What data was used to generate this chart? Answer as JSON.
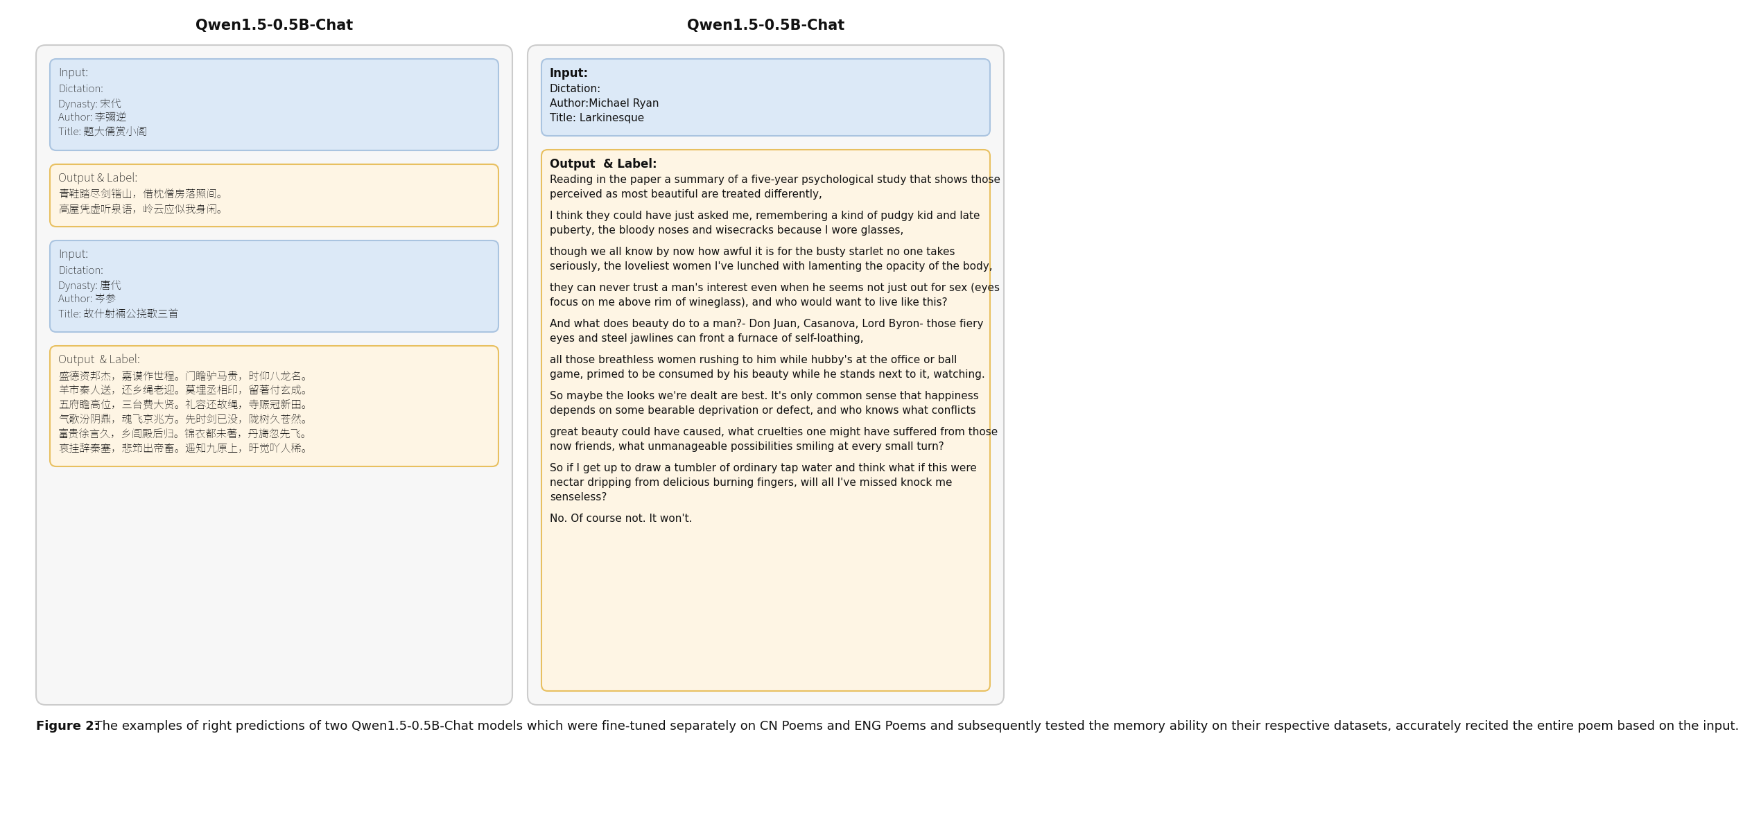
{
  "left_title": "Qwen1.5-0.5B-Chat",
  "right_title": "Qwen1.5-0.5B-Chat",
  "left_boxes": [
    {
      "type": "input",
      "label": "Input:",
      "text": "Dictation:\nDynasty: 宋代\nAuthor: 李彌逆\nTitle: 题大儒赏小阁",
      "bg_color": "#dce9f7",
      "border_color": "#aac4e0"
    },
    {
      "type": "output",
      "label": "Output & Label:",
      "text": "青鞋踏尽剑锴山，借枕僧房落照间。\n高屋凭虚听泉语，岭云应似我身闲。",
      "bg_color": "#fef5e4",
      "border_color": "#e8c060"
    },
    {
      "type": "input",
      "label": "Input:",
      "text": "Dictation:\nDynasty: 唐代\nAuthor: 岑参\nTitle: 故什射裲公挠歌三首",
      "bg_color": "#dce9f7",
      "border_color": "#aac4e0"
    },
    {
      "type": "output",
      "label": "Output  & Label:",
      "text": "盛德资邦杰，嘉谟作世程。门瞻驴马贵，时仰八龙名。\n羊市秦人送，还乡绳老迎。莫埋丞相印，留著付玄成。\n五府瞻高位，三台费大贤。礼容还故绳，寺赈冠新田。\n气歌汾阴鼎，魂飞京兆方。先时剑已没，陇树久苍然。\n富贵徐言久，乡闾殿后归。锦衣都未著，丹旖忽先飞。\n哀挂辞秦塞，悲笻出帝畜。遥知九原上，旴觉吖人稀。",
      "bg_color": "#fef5e4",
      "border_color": "#e8c060"
    }
  ],
  "right_boxes": [
    {
      "type": "input",
      "label": "Input:",
      "text": "Dictation:\nAuthor:Michael Ryan\nTitle: Larkinesque",
      "bg_color": "#dce9f7",
      "border_color": "#aac4e0"
    },
    {
      "type": "output",
      "label": "Output  & Label:",
      "text": "Reading in the paper a summary of a five-year psychological study that shows those\nperceived as most beautiful are treated differently,\n\nI think they could have just asked me, remembering a kind of pudgy kid and late\npuberty, the bloody noses and wisecracks because I wore glasses,\n\nthough we all know by now how awful it is for the busty starlet no one takes\nseriously, the loveliest women I've lunched with lamenting the opacity of the body,\n\nthey can never trust a man's interest even when he seems not just out for sex (eyes\nfocus on me above rim of wineglass), and who would want to live like this?\n\nAnd what does beauty do to a man?- Don Juan, Casanova, Lord Byron- those fiery\neyes and steel jawlines can front a furnace of self-loathing,\n\nall those breathless women rushing to him while hubby's at the office or ball\ngame, primed to be consumed by his beauty while he stands next to it, watching.\n\nSo maybe the looks we're dealt are best. It's only common sense that happiness\ndepends on some bearable deprivation or defect, and who knows what conflicts\n\ngreat beauty could have caused, what cruelties one might have suffered from those\nnow friends, what unmanageable possibilities smiling at every small turn?\n\nSo if I get up to draw a tumbler of ordinary tap water and think what if this were\nnectar dripping from delicious burning fingers, will all I've missed knock me\nsenseless?\n\nNo. Of course not. It won't.",
      "bg_color": "#fef5e4",
      "border_color": "#e8c060"
    }
  ],
  "outer_bg": "#f7f7f7",
  "outer_border": "#cccccc",
  "caption_bold": "Figure 2:",
  "caption_normal": "  The examples of right predictions of two Qwen1.5-0.5B-Chat models which were fine-tuned separately on CN Poems and ENG Poems and subsequently tested the memory ability on their respective datasets, accurately recited the entire poem based on the input.",
  "title_fontsize": 15,
  "label_fontsize": 12,
  "text_fontsize": 11,
  "caption_fontsize": 13
}
